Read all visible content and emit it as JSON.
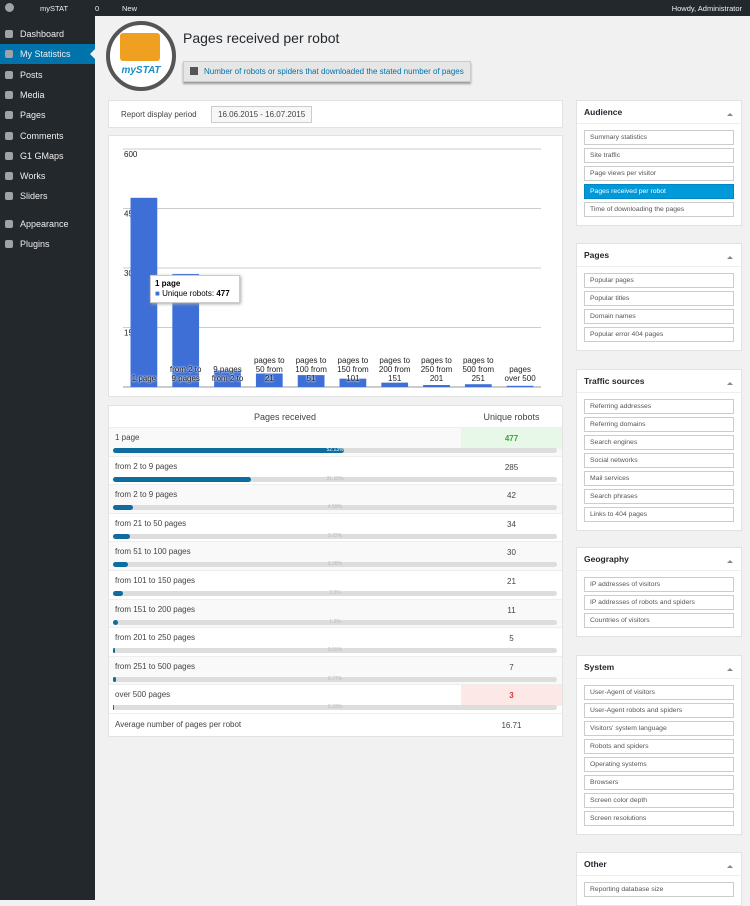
{
  "admin_bar": {
    "site": "mySTAT",
    "comments": "0",
    "new": "New",
    "greeting": "Howdy, Administrator"
  },
  "menu": {
    "items": [
      "Dashboard",
      "My Statistics",
      "Posts",
      "Media",
      "Pages",
      "Comments",
      "G1 GMaps",
      "Works",
      "Sliders",
      "Appearance",
      "Plugins"
    ],
    "selected": 1
  },
  "header": {
    "logo": "mySTAT",
    "title": "Pages received per robot",
    "description": "Number of robots or spiders that downloaded the stated number of pages"
  },
  "period": {
    "label": "Report display period",
    "value": "16.06.2015 - 16.07.2015"
  },
  "chart": {
    "type": "bar",
    "color": "#3d6fd6",
    "categories": [
      "1 page",
      "from 2 to 9 pages",
      "9 pages from 2 to",
      "pages to 50 from 21",
      "pages to 100 from 51",
      "pages to 150 from 101",
      "pages to 200 from 151",
      "pages to 250 from 201",
      "pages to 500 from 251",
      "pages over 500"
    ],
    "values": [
      477,
      285,
      42,
      34,
      30,
      21,
      11,
      5,
      7,
      3
    ],
    "ylim": [
      0,
      600
    ],
    "yticks": [
      150,
      300,
      450,
      600
    ],
    "grid": true,
    "tooltip": {
      "label": "Unique robots:"
    }
  },
  "table": {
    "columns": [
      "Pages received",
      "Unique robots"
    ],
    "rows": [
      {
        "label": "1 page",
        "value": "477",
        "share": {
          "value": 52.13,
          "label": "52.13%"
        },
        "highlight": "max"
      },
      {
        "label": "from 2 to 9 pages",
        "value": "285",
        "share": {
          "value": 31.15,
          "label": "31.15%"
        }
      },
      {
        "label": "from 2 to 9 pages",
        "value": "42",
        "share": {
          "value": 4.59,
          "label": "4.59%"
        }
      },
      {
        "label": "from 21 to 50 pages",
        "value": "34",
        "share": {
          "value": 3.72,
          "label": "3.72%"
        }
      },
      {
        "label": "from 51 to 100 pages",
        "value": "30",
        "share": {
          "value": 3.28,
          "label": "3.28%"
        }
      },
      {
        "label": "from 101 to 150 pages",
        "value": "21",
        "share": {
          "value": 2.3,
          "label": "2.3%"
        }
      },
      {
        "label": "from 151 to 200 pages",
        "value": "11",
        "share": {
          "value": 1.2,
          "label": "1.2%"
        }
      },
      {
        "label": "from 201 to 250 pages",
        "value": "5",
        "share": {
          "value": 0.55,
          "label": "0.55%"
        }
      },
      {
        "label": "from 251 to 500 pages",
        "value": "7",
        "share": {
          "value": 0.77,
          "label": "0.77%"
        }
      },
      {
        "label": "over 500 pages",
        "value": "3",
        "share": {
          "value": 0.33,
          "label": "0.33%"
        },
        "highlight": "min"
      }
    ],
    "footer": {
      "label": "Average number of pages per robot",
      "value": "16.71"
    }
  },
  "sidebar": [
    {
      "title": "Audience",
      "items": [
        "Summary statistics",
        "Site traffic",
        "Page views per visitor",
        "Pages received per robot",
        "Time of downloading the pages"
      ],
      "selected": 3
    },
    {
      "title": "Pages",
      "items": [
        "Popular pages",
        "Popular titles",
        "Domain names",
        "Popular error 404 pages"
      ]
    },
    {
      "title": "Traffic sources",
      "items": [
        "Referring addresses",
        "Referring domains",
        "Search engines",
        "Social networks",
        "Mail services",
        "Search phrases",
        "Links to 404 pages"
      ]
    },
    {
      "title": "Geography",
      "items": [
        "IP addresses of visitors",
        "IP addresses of robots and spiders",
        "Countries of visitors"
      ]
    },
    {
      "title": "System",
      "items": [
        "User-Agent of visitors",
        "User-Agent robots and spiders",
        "Visitors' system language",
        "Robots and spiders",
        "Operating systems",
        "Browsers",
        "Screen color depth",
        "Screen resolutions"
      ]
    },
    {
      "title": "Other",
      "items": [
        "Reporting database size"
      ]
    }
  ]
}
